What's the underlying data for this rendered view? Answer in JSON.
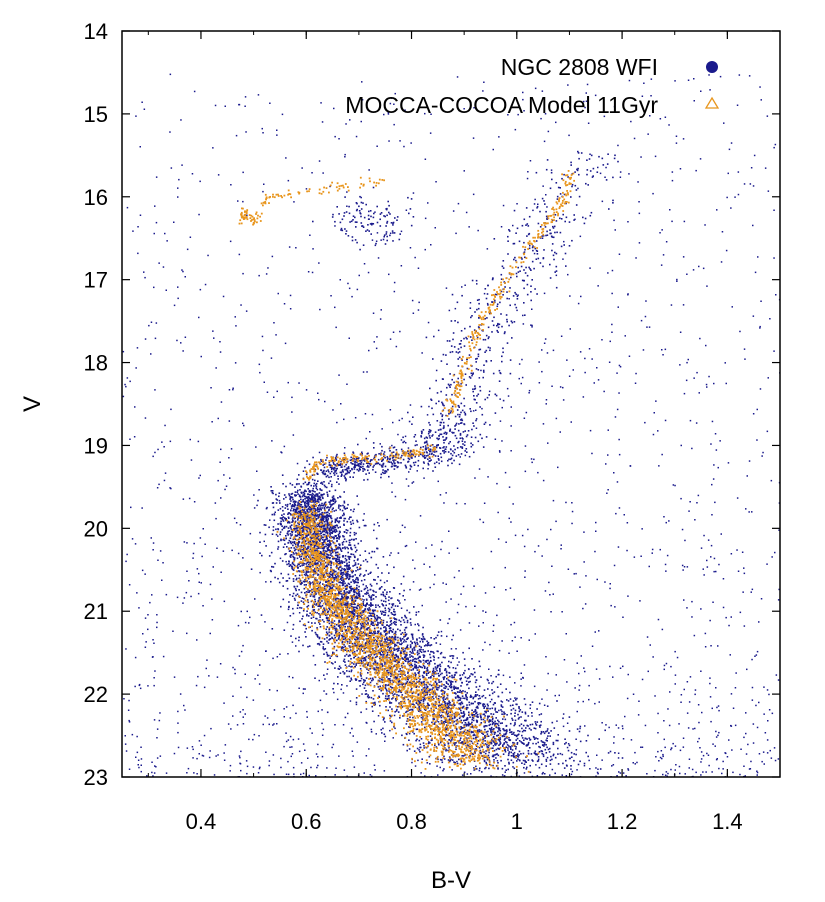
{
  "chart_data": {
    "type": "scatter",
    "xlabel": "B-V",
    "ylabel": "V",
    "xlim": [
      0.25,
      1.5
    ],
    "ylim": [
      23,
      14
    ],
    "y_inverted": true,
    "x_ticks": [
      "0.4",
      "0.6",
      "0.8",
      "1",
      "1.2",
      "1.4"
    ],
    "y_ticks": [
      "14",
      "15",
      "16",
      "17",
      "18",
      "19",
      "20",
      "21",
      "22",
      "23"
    ],
    "grid": false,
    "legend_position": "top-right",
    "series": [
      {
        "name": "NGC 2808 WFI",
        "marker": "filled-circle",
        "color": "#1a1a8c",
        "description_features": {
          "main_sequence_turnoff": {
            "bv": 0.62,
            "v": 19.4
          },
          "subgiant_branch": [
            [
              0.62,
              19.3
            ],
            [
              0.72,
              19.2
            ],
            [
              0.85,
              19.1
            ]
          ],
          "red_giant_branch": [
            [
              0.85,
              19.1
            ],
            [
              0.89,
              18.4
            ],
            [
              0.94,
              17.5
            ],
            [
              1.01,
              16.8
            ],
            [
              1.08,
              16.2
            ],
            [
              1.13,
              15.5
            ]
          ],
          "horizontal_branch_red_clump": {
            "bv": 0.72,
            "v": 16.3
          },
          "main_sequence": [
            [
              0.6,
              19.6
            ],
            [
              0.62,
              20.2
            ],
            [
              0.66,
              20.8
            ],
            [
              0.72,
              21.3
            ],
            [
              0.8,
              21.8
            ],
            [
              0.9,
              22.3
            ],
            [
              1.0,
              22.8
            ]
          ]
        }
      },
      {
        "name": "MOCCA-COCOA Model 11Gyr",
        "marker": "open-triangle",
        "color": "#e8961e",
        "isochrone": [
          [
            0.48,
            16.3
          ],
          [
            0.48,
            16.15
          ],
          [
            0.5,
            16.3
          ],
          [
            0.52,
            16.0
          ],
          [
            0.57,
            15.95
          ],
          [
            0.63,
            15.9
          ],
          [
            0.7,
            15.85
          ],
          [
            0.77,
            15.75
          ],
          [
            0.6,
            19.4
          ],
          [
            0.62,
            19.2
          ],
          [
            0.68,
            19.15
          ],
          [
            0.78,
            19.1
          ],
          [
            0.84,
            19.05
          ],
          [
            0.87,
            18.6
          ],
          [
            0.89,
            18.2
          ],
          [
            0.91,
            17.8
          ],
          [
            0.93,
            17.5
          ],
          [
            0.97,
            17.1
          ],
          [
            1.02,
            16.6
          ],
          [
            1.06,
            16.3
          ],
          [
            1.09,
            16.0
          ],
          [
            1.1,
            15.7
          ],
          [
            0.6,
            19.8
          ],
          [
            0.61,
            20.3
          ],
          [
            0.64,
            20.8
          ],
          [
            0.69,
            21.2
          ],
          [
            0.74,
            21.6
          ],
          [
            0.8,
            22.0
          ],
          [
            0.86,
            22.4
          ],
          [
            0.92,
            22.8
          ]
        ]
      }
    ]
  },
  "legend": {
    "entries": [
      {
        "label": "NGC 2808 WFI",
        "symbol": "●"
      },
      {
        "label": "MOCCA-COCOA Model 11Gyr",
        "symbol": "△"
      }
    ]
  }
}
